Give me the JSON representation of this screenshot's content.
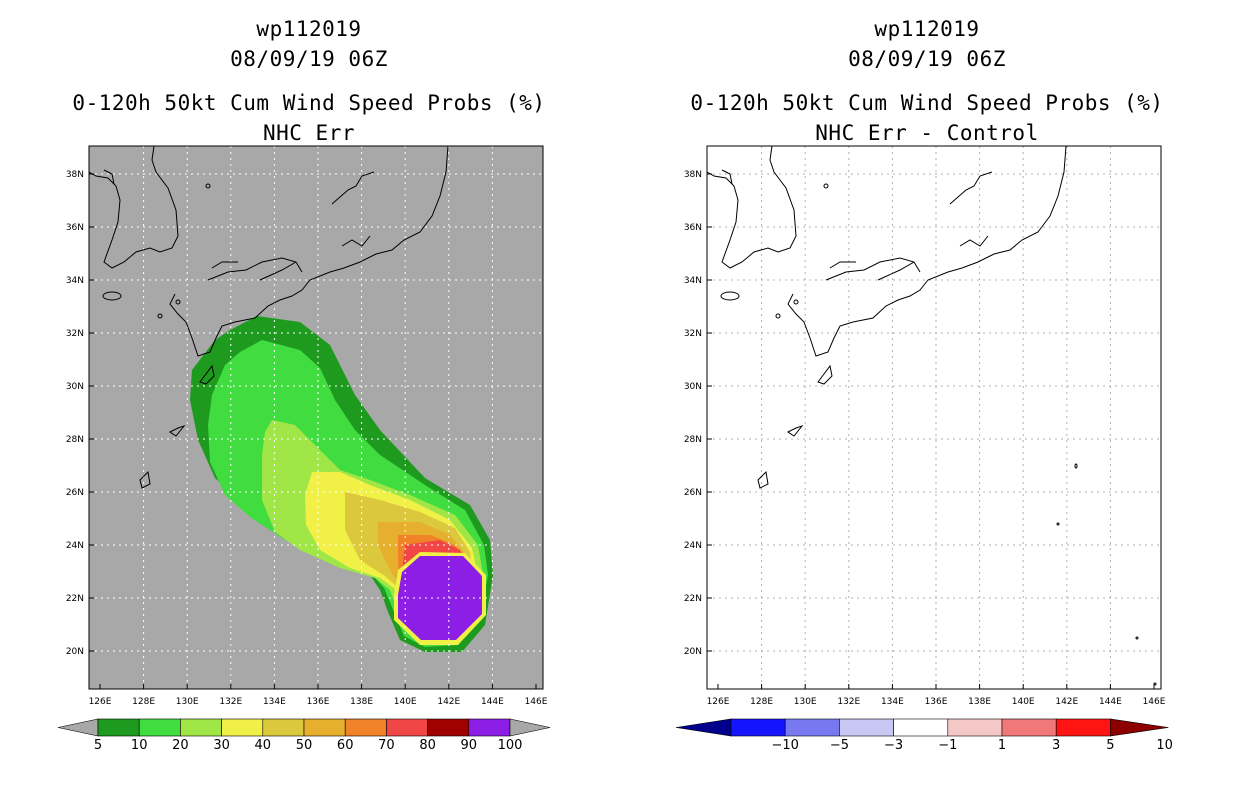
{
  "left_panel": {
    "storm_id": "wp112019",
    "datetime": "08/09/19 06Z",
    "product": "0-120h 50kt Cum Wind Speed Probs (%)",
    "subtitle": "NHC Err",
    "background_color": "#a8a8a8",
    "colorbar": {
      "labels": [
        "5",
        "10",
        "20",
        "30",
        "40",
        "50",
        "60",
        "70",
        "80",
        "90",
        "100"
      ],
      "colors": [
        "#1e9b1e",
        "#40dc40",
        "#a0e646",
        "#f0f046",
        "#dcc83c",
        "#e6af2d",
        "#f08228",
        "#f04646",
        "#a00000",
        "#8c1ee6"
      ]
    }
  },
  "right_panel": {
    "storm_id": "wp112019",
    "datetime": "08/09/19 06Z",
    "product": "0-120h 50kt Cum Wind Speed Probs (%)",
    "subtitle": "NHC Err - Control",
    "background_color": "#ffffff",
    "colorbar": {
      "labels": [
        "-10",
        "-5",
        "-3",
        "-1",
        "1",
        "3",
        "5",
        "10"
      ],
      "colors": [
        "#00008c",
        "#1414ff",
        "#7878f0",
        "#c8c8f5",
        "#ffffff",
        "#f5c8c8",
        "#f07878",
        "#ff1414",
        "#8c0000"
      ]
    }
  },
  "map": {
    "lon_labels": [
      "126E",
      "128E",
      "130E",
      "132E",
      "134E",
      "136E",
      "138E",
      "140E",
      "142E",
      "144E",
      "146E"
    ],
    "lat_labels": [
      "20N",
      "22N",
      "24N",
      "26N",
      "28N",
      "30N",
      "32N",
      "34N",
      "36N",
      "38N"
    ]
  }
}
